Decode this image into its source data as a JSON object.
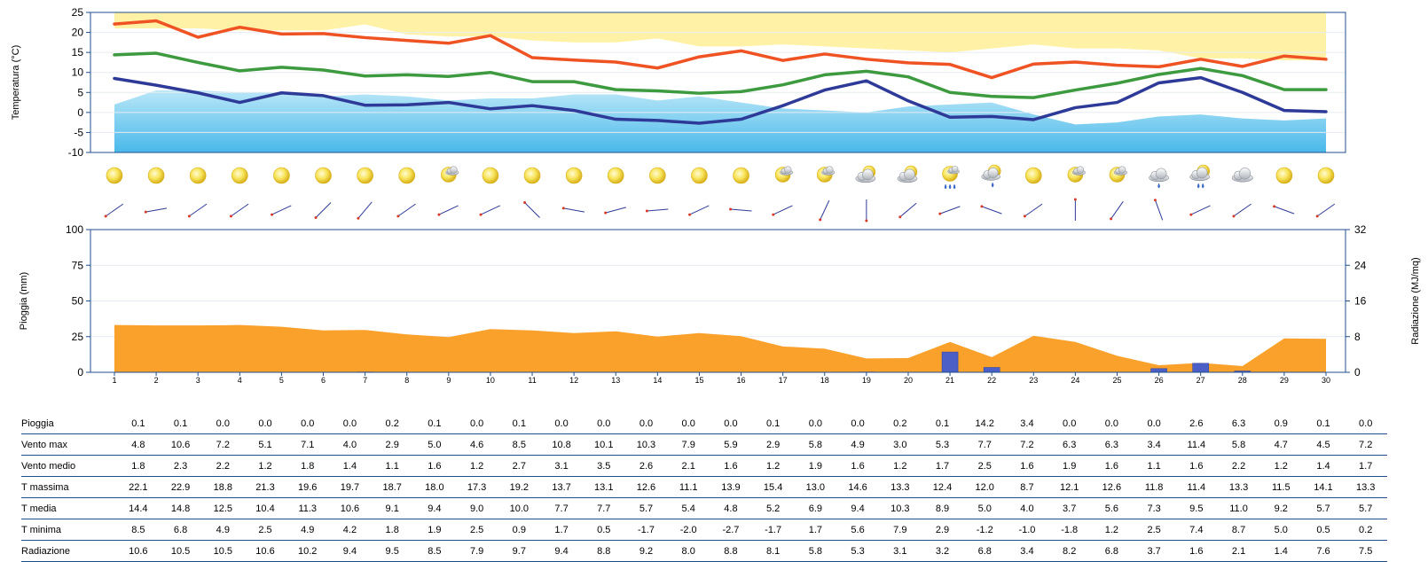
{
  "chart_data": [
    {
      "type": "line",
      "ylabel": "Temperatura (°C)",
      "ylim": [
        -10,
        25
      ],
      "yticks": [
        25,
        20,
        15,
        10,
        5,
        0,
        -5,
        -10
      ],
      "x": [
        1,
        2,
        3,
        4,
        5,
        6,
        7,
        8,
        9,
        10,
        11,
        12,
        13,
        14,
        15,
        16,
        17,
        18,
        19,
        20,
        21,
        22,
        23,
        24,
        25,
        26,
        27,
        28,
        29,
        30
      ],
      "grid": false,
      "series": [
        {
          "role": "t_max",
          "color": "#f05323",
          "values": [
            22.1,
            22.9,
            18.8,
            21.3,
            19.6,
            19.7,
            18.7,
            18.0,
            17.3,
            19.2,
            13.7,
            13.1,
            12.6,
            11.1,
            13.9,
            15.4,
            13.0,
            14.6,
            13.3,
            12.4,
            12.0,
            8.7,
            12.1,
            12.6,
            11.8,
            11.4,
            13.3,
            11.5,
            14.1,
            13.3
          ]
        },
        {
          "role": "t_media",
          "color": "#3d9a3f",
          "values": [
            14.4,
            14.8,
            12.5,
            10.4,
            11.3,
            10.6,
            9.1,
            9.4,
            9.0,
            10.0,
            7.7,
            7.7,
            5.7,
            5.4,
            4.8,
            5.2,
            6.9,
            9.4,
            10.3,
            8.9,
            5.0,
            4.0,
            3.7,
            5.6,
            7.3,
            9.5,
            11.0,
            9.2,
            5.7,
            5.7
          ]
        },
        {
          "role": "t_minima",
          "color": "#2e3a97",
          "values": [
            8.5,
            6.8,
            4.9,
            2.5,
            4.9,
            4.2,
            1.8,
            1.9,
            2.5,
            0.9,
            1.7,
            0.5,
            -1.7,
            -2.0,
            -2.7,
            -1.7,
            1.7,
            5.6,
            7.9,
            2.9,
            -1.2,
            -1.0,
            -1.8,
            1.2,
            2.5,
            7.4,
            8.7,
            5.0,
            0.5,
            0.2
          ]
        },
        {
          "role": "clim_max_band",
          "type": "area",
          "color": "#fff2a6",
          "values": [
            21,
            21,
            21,
            20.5,
            20.5,
            20.5,
            22,
            19.5,
            19,
            19,
            18,
            17.5,
            17.5,
            18.5,
            16.5,
            16.5,
            17,
            16.5,
            16,
            15.5,
            15,
            16,
            17,
            16,
            16,
            15.5,
            13.5,
            13.5,
            13,
            13
          ]
        },
        {
          "role": "clim_min_band",
          "type": "area",
          "color": "#9fdcf5",
          "values": [
            2,
            5.5,
            5.5,
            5,
            5,
            4,
            4.5,
            4,
            3,
            3.5,
            3.5,
            4.5,
            4.5,
            3,
            4,
            2.5,
            1,
            0.5,
            0,
            1.5,
            2,
            2.5,
            -0.5,
            -3,
            -2.5,
            -1,
            -0.5,
            -1.5,
            -2,
            -1.5
          ]
        }
      ]
    },
    {
      "type": "bar",
      "ylabel": "Pioggia (mm)",
      "ylim": [
        0,
        100
      ],
      "yticks": [
        100,
        75,
        50,
        25,
        0
      ],
      "y2label": "Radiazione (MJ/mq)",
      "y2lim": [
        0,
        32
      ],
      "y2ticks": [
        32,
        24,
        16,
        8,
        0
      ],
      "categories": [
        "1",
        "2",
        "3",
        "4",
        "5",
        "6",
        "7",
        "8",
        "9",
        "10",
        "11",
        "12",
        "13",
        "14",
        "15",
        "16",
        "17",
        "18",
        "19",
        "20",
        "21",
        "22",
        "23",
        "24",
        "25",
        "26",
        "27",
        "28",
        "29",
        "30"
      ],
      "series": [
        {
          "role": "pioggia",
          "type": "bar",
          "axis": "left",
          "color": "#4b5fc6",
          "values": [
            0.1,
            0.1,
            0.0,
            0.0,
            0.0,
            0.0,
            0.2,
            0.1,
            0.0,
            0.1,
            0.0,
            0.0,
            0.0,
            0.0,
            0.0,
            0.1,
            0.0,
            0.0,
            0.2,
            0.1,
            14.2,
            3.4,
            0.0,
            0.0,
            0.0,
            2.6,
            6.3,
            0.9,
            0.1,
            0.0
          ]
        },
        {
          "role": "radiazione",
          "type": "area",
          "axis": "right",
          "color": "#f9a12a",
          "values": [
            10.6,
            10.5,
            10.5,
            10.6,
            10.2,
            9.4,
            9.5,
            8.5,
            7.9,
            9.7,
            9.4,
            8.8,
            9.2,
            8.0,
            8.8,
            8.1,
            5.8,
            5.3,
            3.1,
            3.2,
            6.8,
            3.4,
            8.2,
            6.8,
            3.7,
            1.6,
            2.1,
            1.4,
            7.6,
            7.5
          ]
        }
      ]
    }
  ],
  "icons": [
    {
      "symbol": "sun-icon",
      "wind_deg": 55
    },
    {
      "symbol": "sun-icon",
      "wind_deg": 80
    },
    {
      "symbol": "sun-icon",
      "wind_deg": 55
    },
    {
      "symbol": "sun-icon",
      "wind_deg": 55
    },
    {
      "symbol": "sun-icon",
      "wind_deg": 65
    },
    {
      "symbol": "sun-icon",
      "wind_deg": 45
    },
    {
      "symbol": "sun-icon",
      "wind_deg": 40
    },
    {
      "symbol": "sun-icon",
      "wind_deg": 55
    },
    {
      "symbol": "sun-cloud-icon",
      "wind_deg": 65
    },
    {
      "symbol": "sun-icon",
      "wind_deg": 65
    },
    {
      "symbol": "sun-icon",
      "wind_deg": 135
    },
    {
      "symbol": "sun-icon",
      "wind_deg": 100
    },
    {
      "symbol": "sun-icon",
      "wind_deg": 75
    },
    {
      "symbol": "sun-icon",
      "wind_deg": 85
    },
    {
      "symbol": "sun-icon",
      "wind_deg": 65
    },
    {
      "symbol": "sun-icon",
      "wind_deg": 95
    },
    {
      "symbol": "sun-cloud-icon",
      "wind_deg": 65
    },
    {
      "symbol": "sun-cloud-icon",
      "wind_deg": 25
    },
    {
      "symbol": "cloud-sun-icon",
      "wind_deg": 0
    },
    {
      "symbol": "cloud-sun-icon",
      "wind_deg": 50
    },
    {
      "symbol": "sun-rain-heavy-icon",
      "wind_deg": 70
    },
    {
      "symbol": "sun-cloud-rain-icon",
      "wind_deg": 110
    },
    {
      "symbol": "sun-icon",
      "wind_deg": 55
    },
    {
      "symbol": "sun-cloud-icon",
      "wind_deg": 180
    },
    {
      "symbol": "sun-cloud-icon",
      "wind_deg": 35
    },
    {
      "symbol": "cloud-rain-icon",
      "wind_deg": 160
    },
    {
      "symbol": "sun-cloud-rain-heavy-icon",
      "wind_deg": 65
    },
    {
      "symbol": "cloud-icon",
      "wind_deg": 55
    },
    {
      "symbol": "sun-icon",
      "wind_deg": 110
    },
    {
      "symbol": "sun-icon",
      "wind_deg": 55
    }
  ],
  "table": {
    "rows": [
      {
        "label": "Pioggia",
        "values": [
          "0.1",
          "0.1",
          "0.0",
          "0.0",
          "0.0",
          "0.0",
          "0.2",
          "0.1",
          "0.0",
          "0.1",
          "0.0",
          "0.0",
          "0.0",
          "0.0",
          "0.0",
          "0.1",
          "0.0",
          "0.0",
          "0.2",
          "0.1",
          "14.2",
          "3.4",
          "0.0",
          "0.0",
          "0.0",
          "2.6",
          "6.3",
          "0.9",
          "0.1",
          "0.0"
        ]
      },
      {
        "label": "Vento max",
        "values": [
          "4.8",
          "10.6",
          "7.2",
          "5.1",
          "7.1",
          "4.0",
          "2.9",
          "5.0",
          "4.6",
          "8.5",
          "10.8",
          "10.1",
          "10.3",
          "7.9",
          "5.9",
          "2.9",
          "5.8",
          "4.9",
          "3.0",
          "5.3",
          "7.7",
          "7.2",
          "6.3",
          "6.3",
          "3.4",
          "11.4",
          "5.8",
          "4.7",
          "4.5",
          "7.2"
        ]
      },
      {
        "label": "Vento medio",
        "values": [
          "1.8",
          "2.3",
          "2.2",
          "1.2",
          "1.8",
          "1.4",
          "1.1",
          "1.6",
          "1.2",
          "2.7",
          "3.1",
          "3.5",
          "2.6",
          "2.1",
          "1.6",
          "1.2",
          "1.9",
          "1.6",
          "1.2",
          "1.7",
          "2.5",
          "1.6",
          "1.9",
          "1.6",
          "1.1",
          "1.6",
          "2.2",
          "1.2",
          "1.4",
          "1.7"
        ]
      },
      {
        "label": "T massima",
        "values": [
          "22.1",
          "22.9",
          "18.8",
          "21.3",
          "19.6",
          "19.7",
          "18.7",
          "18.0",
          "17.3",
          "19.2",
          "13.7",
          "13.1",
          "12.6",
          "11.1",
          "13.9",
          "15.4",
          "13.0",
          "14.6",
          "13.3",
          "12.4",
          "12.0",
          "8.7",
          "12.1",
          "12.6",
          "11.8",
          "11.4",
          "13.3",
          "11.5",
          "14.1",
          "13.3"
        ]
      },
      {
        "label": "T media",
        "values": [
          "14.4",
          "14.8",
          "12.5",
          "10.4",
          "11.3",
          "10.6",
          "9.1",
          "9.4",
          "9.0",
          "10.0",
          "7.7",
          "7.7",
          "5.7",
          "5.4",
          "4.8",
          "5.2",
          "6.9",
          "9.4",
          "10.3",
          "8.9",
          "5.0",
          "4.0",
          "3.7",
          "5.6",
          "7.3",
          "9.5",
          "11.0",
          "9.2",
          "5.7",
          "5.7"
        ]
      },
      {
        "label": "T minima",
        "values": [
          "8.5",
          "6.8",
          "4.9",
          "2.5",
          "4.9",
          "4.2",
          "1.8",
          "1.9",
          "2.5",
          "0.9",
          "1.7",
          "0.5",
          "-1.7",
          "-2.0",
          "-2.7",
          "-1.7",
          "1.7",
          "5.6",
          "7.9",
          "2.9",
          "-1.2",
          "-1.0",
          "-1.8",
          "1.2",
          "2.5",
          "7.4",
          "8.7",
          "5.0",
          "0.5",
          "0.2"
        ]
      },
      {
        "label": "Radiazione",
        "values": [
          "10.6",
          "10.5",
          "10.5",
          "10.6",
          "10.2",
          "9.4",
          "9.5",
          "8.5",
          "7.9",
          "9.7",
          "9.4",
          "8.8",
          "9.2",
          "8.0",
          "8.8",
          "8.1",
          "5.8",
          "5.3",
          "3.1",
          "3.2",
          "6.8",
          "3.4",
          "8.2",
          "6.8",
          "3.7",
          "1.6",
          "2.1",
          "1.4",
          "7.6",
          "7.5"
        ]
      }
    ]
  }
}
